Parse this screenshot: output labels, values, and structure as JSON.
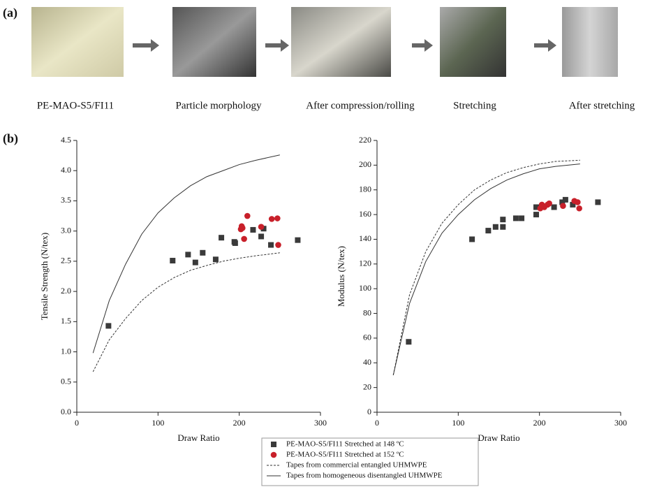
{
  "figure": {
    "panel_a_label": "(a)",
    "panel_b_label": "(b)",
    "steps": [
      "PE-MAO-S5/FI11",
      "Particle morphology",
      "After compression/rolling",
      "Stretching",
      "After stretching"
    ]
  },
  "chart_data": [
    {
      "type": "scatter",
      "ylabel": "Tensile Strength (N/tex)",
      "xlabel": "Draw Ratio",
      "xlim": [
        0,
        300
      ],
      "xticks": [
        0,
        100,
        200,
        300
      ],
      "ylim": [
        0,
        4.5
      ],
      "yticks": [
        {
          "value": 0,
          "label": "0.0"
        },
        0.5,
        {
          "value": 1,
          "label": "1.0"
        },
        1.5,
        {
          "value": 2,
          "label": "2.0"
        },
        2.5,
        {
          "value": 3,
          "label": "3.0"
        },
        3.5,
        {
          "value": 4,
          "label": "4.0"
        },
        4.5
      ],
      "series": [
        {
          "name": "PE-MAO-S5/FI11 Stretched at 148 ºC",
          "marker": "square",
          "color": "#3a3a3a",
          "x": [
            39,
            118,
            137,
            146,
            155,
            171,
            178,
            194,
            195,
            217,
            227,
            230,
            239,
            272
          ],
          "values": [
            1.43,
            2.51,
            2.61,
            2.48,
            2.64,
            2.53,
            2.89,
            2.82,
            2.8,
            3.02,
            2.91,
            3.04,
            2.77,
            2.85
          ]
        },
        {
          "name": "PE-MAO-S5/FI11 Stretched at 152 ºC",
          "marker": "circle",
          "color": "#c8202a",
          "x": [
            202,
            203,
            204,
            206,
            210,
            227,
            240,
            247,
            248
          ],
          "values": [
            3.03,
            3.08,
            3.05,
            2.87,
            3.25,
            3.07,
            3.2,
            3.21,
            2.77
          ]
        },
        {
          "name": "Tapes from commercial entangled UHMWPE",
          "type": "line",
          "dash": true,
          "color": "#333333",
          "x": [
            20,
            40,
            60,
            80,
            100,
            120,
            140,
            160,
            180,
            200,
            220,
            250
          ],
          "values": [
            0.67,
            1.2,
            1.55,
            1.85,
            2.07,
            2.23,
            2.35,
            2.43,
            2.5,
            2.55,
            2.59,
            2.64
          ]
        },
        {
          "name": "Tapes from homogeneous disentangled UHMWPE",
          "type": "line",
          "dash": false,
          "color": "#333333",
          "x": [
            20,
            40,
            60,
            80,
            100,
            120,
            140,
            160,
            180,
            200,
            220,
            250
          ],
          "values": [
            0.98,
            1.85,
            2.45,
            2.95,
            3.3,
            3.55,
            3.75,
            3.9,
            4.0,
            4.1,
            4.17,
            4.26
          ]
        }
      ]
    },
    {
      "type": "scatter",
      "ylabel": "Modulus (N/tex)",
      "xlabel": "Draw Ratio",
      "xlim": [
        0,
        300
      ],
      "xticks": [
        0,
        100,
        200,
        300
      ],
      "ylim": [
        0,
        220
      ],
      "yticks": [
        0,
        20,
        40,
        60,
        80,
        100,
        120,
        140,
        160,
        180,
        200,
        220
      ],
      "series": [
        {
          "marker": "square",
          "color": "#3a3a3a",
          "x": [
            39,
            117,
            137,
            146,
            155,
            155,
            171,
            178,
            196,
            196,
            218,
            228,
            232,
            241,
            272
          ],
          "values": [
            57,
            140,
            147,
            150,
            150,
            156,
            157,
            157,
            160,
            166,
            166,
            170,
            172,
            168,
            170
          ]
        },
        {
          "marker": "circle",
          "color": "#c8202a",
          "x": [
            201,
            203,
            206,
            210,
            212,
            229,
            243,
            247,
            249
          ],
          "values": [
            165,
            168,
            166,
            168,
            169,
            167,
            171,
            170,
            165
          ]
        },
        {
          "type": "line",
          "dash": true,
          "color": "#333333",
          "x": [
            20,
            40,
            60,
            80,
            100,
            120,
            140,
            160,
            180,
            200,
            220,
            250
          ],
          "values": [
            30,
            95,
            130,
            153,
            168,
            180,
            188,
            194,
            198,
            201,
            203,
            204
          ]
        },
        {
          "type": "line",
          "dash": false,
          "color": "#333333",
          "x": [
            20,
            40,
            60,
            80,
            100,
            120,
            140,
            160,
            180,
            200,
            220,
            250
          ],
          "values": [
            30,
            88,
            122,
            145,
            160,
            172,
            181,
            188,
            193,
            197,
            199,
            201
          ]
        }
      ]
    }
  ]
}
